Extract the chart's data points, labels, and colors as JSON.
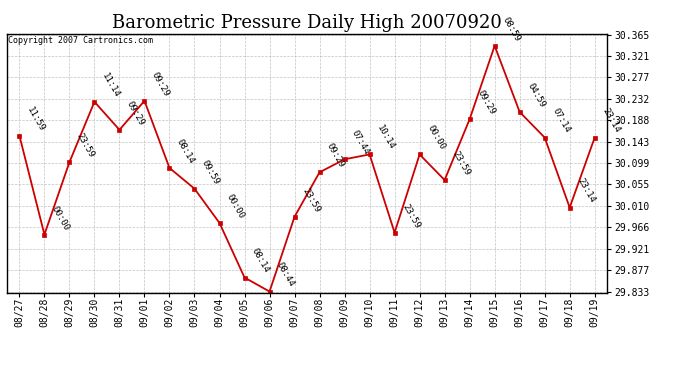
{
  "title": "Barometric Pressure Daily High 20070920",
  "copyright": "Copyright 2007 Cartronics.com",
  "x_labels": [
    "08/27",
    "08/28",
    "08/29",
    "08/30",
    "08/31",
    "09/01",
    "09/02",
    "09/03",
    "09/04",
    "09/05",
    "09/06",
    "09/07",
    "09/08",
    "09/09",
    "09/10",
    "09/11",
    "09/12",
    "09/13",
    "09/14",
    "09/15",
    "09/16",
    "09/17",
    "09/18",
    "09/19"
  ],
  "y_values": [
    30.156,
    29.951,
    30.101,
    30.226,
    30.168,
    30.228,
    30.089,
    30.046,
    29.975,
    29.862,
    29.833,
    29.988,
    30.08,
    30.107,
    30.117,
    29.955,
    30.117,
    30.064,
    30.19,
    30.342,
    30.205,
    30.152,
    30.007,
    30.152
  ],
  "time_labels": [
    "11:59",
    "00:00",
    "23:59",
    "11:14",
    "09:29",
    "09:29",
    "08:14",
    "09:59",
    "00:00",
    "08:14",
    "08:44",
    "23:59",
    "09:29",
    "07:44",
    "10:14",
    "23:59",
    "00:00",
    "23:59",
    "09:29",
    "08:59",
    "04:59",
    "07:14",
    "23:14",
    "23:14"
  ],
  "y_min": 29.833,
  "y_max": 30.365,
  "y_ticks": [
    29.833,
    29.877,
    29.921,
    29.966,
    30.01,
    30.055,
    30.099,
    30.143,
    30.188,
    30.232,
    30.277,
    30.321,
    30.365
  ],
  "line_color": "#cc0000",
  "marker_color": "#cc0000",
  "bg_color": "#ffffff",
  "grid_color": "#aaaaaa",
  "title_fontsize": 13,
  "label_fontsize": 7,
  "annot_fontsize": 6.5
}
